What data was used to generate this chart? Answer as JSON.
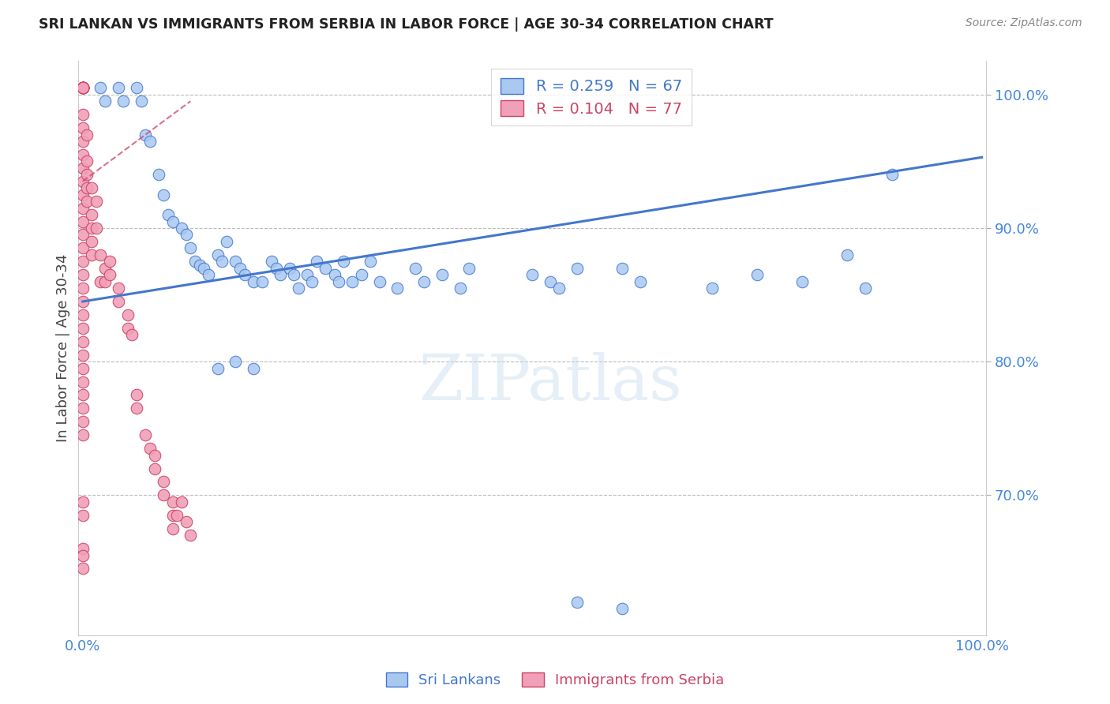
{
  "title": "SRI LANKAN VS IMMIGRANTS FROM SERBIA IN LABOR FORCE | AGE 30-34 CORRELATION CHART",
  "source": "Source: ZipAtlas.com",
  "ylabel": "In Labor Force | Age 30-34",
  "blue_R": 0.259,
  "blue_N": 67,
  "pink_R": 0.104,
  "pink_N": 77,
  "blue_color": "#A8C8F0",
  "pink_color": "#F0A0B8",
  "line_blue": "#4477CC",
  "line_pink": "#CC4466",
  "background_color": "#FFFFFF",
  "grid_color": "#BBBBBB",
  "title_color": "#222222",
  "axis_label_color": "#444444",
  "tick_label_color": "#4488DD",
  "watermark": "ZIPatlas",
  "xlim": [
    -0.005,
    1.005
  ],
  "ylim": [
    0.595,
    1.025
  ],
  "yticks": [
    0.7,
    0.8,
    0.9,
    1.0
  ],
  "ytick_labels": [
    "70.0%",
    "80.0%",
    "90.0%",
    "100.0%"
  ],
  "xticks": [
    0.0,
    1.0
  ],
  "xtick_labels": [
    "0.0%",
    "100.0%"
  ],
  "blue_line_x": [
    0.0,
    1.0
  ],
  "blue_line_y": [
    0.845,
    0.953
  ],
  "pink_line_x": [
    0.0,
    0.12
  ],
  "pink_line_y": [
    0.935,
    0.995
  ],
  "blue_x": [
    0.02,
    0.025,
    0.04,
    0.045,
    0.06,
    0.065,
    0.07,
    0.075,
    0.085,
    0.09,
    0.095,
    0.1,
    0.11,
    0.115,
    0.12,
    0.125,
    0.13,
    0.135,
    0.14,
    0.15,
    0.155,
    0.16,
    0.17,
    0.175,
    0.18,
    0.19,
    0.2,
    0.21,
    0.215,
    0.22,
    0.23,
    0.235,
    0.24,
    0.25,
    0.255,
    0.26,
    0.27,
    0.28,
    0.285,
    0.29,
    0.3,
    0.31,
    0.32,
    0.33,
    0.35,
    0.37,
    0.38,
    0.4,
    0.42,
    0.43,
    0.5,
    0.52,
    0.53,
    0.55,
    0.6,
    0.62,
    0.7,
    0.75,
    0.8,
    0.85,
    0.87,
    0.9,
    0.15,
    0.17,
    0.19,
    0.55,
    0.6
  ],
  "blue_y": [
    1.005,
    0.995,
    1.005,
    0.995,
    1.005,
    0.995,
    0.97,
    0.965,
    0.94,
    0.925,
    0.91,
    0.905,
    0.9,
    0.895,
    0.885,
    0.875,
    0.872,
    0.87,
    0.865,
    0.88,
    0.875,
    0.89,
    0.875,
    0.87,
    0.865,
    0.86,
    0.86,
    0.875,
    0.87,
    0.865,
    0.87,
    0.865,
    0.855,
    0.865,
    0.86,
    0.875,
    0.87,
    0.865,
    0.86,
    0.875,
    0.86,
    0.865,
    0.875,
    0.86,
    0.855,
    0.87,
    0.86,
    0.865,
    0.855,
    0.87,
    0.865,
    0.86,
    0.855,
    0.87,
    0.87,
    0.86,
    0.855,
    0.865,
    0.86,
    0.88,
    0.855,
    0.94,
    0.795,
    0.8,
    0.795,
    0.62,
    0.615
  ],
  "pink_x": [
    0.0,
    0.0,
    0.0,
    0.0,
    0.0,
    0.0,
    0.0,
    0.0,
    0.0,
    0.0,
    0.0,
    0.0,
    0.0,
    0.0,
    0.0,
    0.0,
    0.0,
    0.0,
    0.0,
    0.0,
    0.0,
    0.0,
    0.0,
    0.0,
    0.0,
    0.0,
    0.0,
    0.0,
    0.0,
    0.0,
    0.0,
    0.0,
    0.0,
    0.0,
    0.005,
    0.005,
    0.005,
    0.005,
    0.005,
    0.01,
    0.01,
    0.01,
    0.01,
    0.01,
    0.015,
    0.015,
    0.02,
    0.02,
    0.025,
    0.025,
    0.03,
    0.03,
    0.04,
    0.04,
    0.05,
    0.05,
    0.055,
    0.06,
    0.06,
    0.07,
    0.075,
    0.08,
    0.08,
    0.09,
    0.09,
    0.1,
    0.1,
    0.1,
    0.105,
    0.11,
    0.115,
    0.12,
    0.0,
    0.0,
    0.0,
    0.0,
    0.0
  ],
  "pink_y": [
    1.005,
    1.005,
    1.005,
    1.005,
    1.005,
    1.005,
    1.005,
    1.005,
    1.005,
    0.985,
    0.975,
    0.965,
    0.955,
    0.945,
    0.935,
    0.925,
    0.915,
    0.905,
    0.895,
    0.885,
    0.875,
    0.865,
    0.855,
    0.845,
    0.835,
    0.825,
    0.815,
    0.805,
    0.795,
    0.785,
    0.775,
    0.765,
    0.755,
    0.745,
    0.97,
    0.95,
    0.94,
    0.93,
    0.92,
    0.93,
    0.91,
    0.9,
    0.89,
    0.88,
    0.92,
    0.9,
    0.88,
    0.86,
    0.87,
    0.86,
    0.875,
    0.865,
    0.855,
    0.845,
    0.835,
    0.825,
    0.82,
    0.775,
    0.765,
    0.745,
    0.735,
    0.73,
    0.72,
    0.71,
    0.7,
    0.695,
    0.685,
    0.675,
    0.685,
    0.695,
    0.68,
    0.67,
    0.695,
    0.685,
    0.66,
    0.655,
    0.645
  ]
}
